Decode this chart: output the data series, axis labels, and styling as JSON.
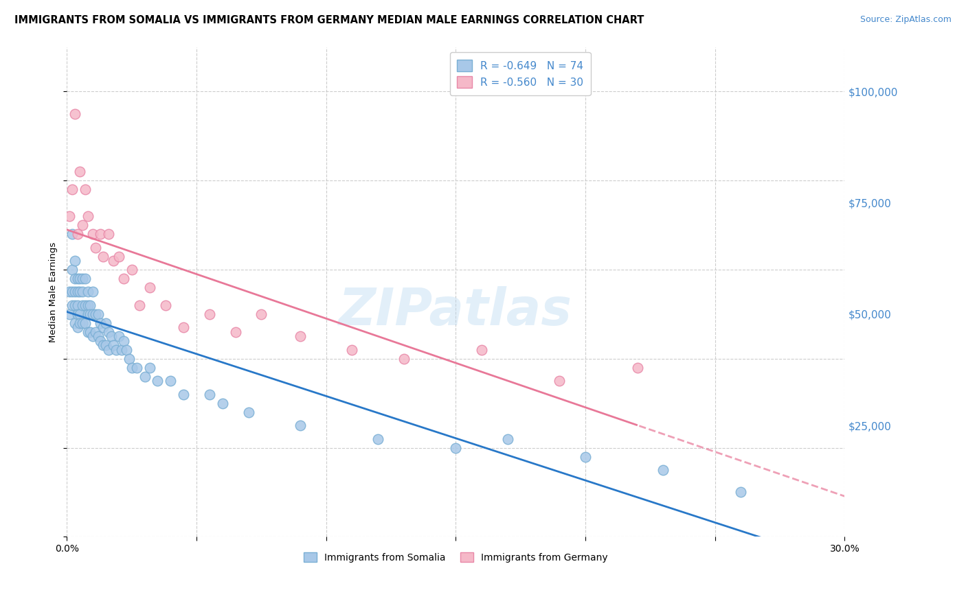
{
  "title": "IMMIGRANTS FROM SOMALIA VS IMMIGRANTS FROM GERMANY MEDIAN MALE EARNINGS CORRELATION CHART",
  "source": "Source: ZipAtlas.com",
  "ylabel_label": "Median Male Earnings",
  "x_min": 0.0,
  "x_max": 0.3,
  "y_min": 0,
  "y_max": 110000,
  "somalia_color": "#a8c8e8",
  "somalia_edge": "#7aafd4",
  "germany_color": "#f5b8c8",
  "germany_edge": "#e888a8",
  "somalia_line_color": "#2878c8",
  "germany_line_color": "#e87898",
  "R_somalia": -0.649,
  "N_somalia": 74,
  "R_germany": -0.56,
  "N_germany": 30,
  "watermark": "ZIPatlas",
  "tick_color": "#4488cc",
  "grid_color": "#cccccc",
  "title_fontsize": 10.5,
  "source_fontsize": 9,
  "legend_fontsize": 11,
  "somalia_x": [
    0.001,
    0.001,
    0.002,
    0.002,
    0.002,
    0.002,
    0.003,
    0.003,
    0.003,
    0.003,
    0.003,
    0.004,
    0.004,
    0.004,
    0.004,
    0.004,
    0.005,
    0.005,
    0.005,
    0.005,
    0.006,
    0.006,
    0.006,
    0.006,
    0.007,
    0.007,
    0.007,
    0.008,
    0.008,
    0.008,
    0.008,
    0.009,
    0.009,
    0.009,
    0.01,
    0.01,
    0.01,
    0.011,
    0.011,
    0.012,
    0.012,
    0.013,
    0.013,
    0.014,
    0.014,
    0.015,
    0.015,
    0.016,
    0.016,
    0.017,
    0.018,
    0.019,
    0.02,
    0.021,
    0.022,
    0.023,
    0.024,
    0.025,
    0.027,
    0.03,
    0.032,
    0.035,
    0.04,
    0.045,
    0.055,
    0.06,
    0.07,
    0.09,
    0.12,
    0.15,
    0.17,
    0.2,
    0.23,
    0.26
  ],
  "somalia_y": [
    55000,
    50000,
    68000,
    60000,
    55000,
    52000,
    62000,
    58000,
    55000,
    52000,
    48000,
    58000,
    55000,
    52000,
    50000,
    47000,
    58000,
    55000,
    50000,
    48000,
    58000,
    55000,
    52000,
    48000,
    58000,
    52000,
    48000,
    55000,
    52000,
    50000,
    46000,
    52000,
    50000,
    46000,
    55000,
    50000,
    45000,
    50000,
    46000,
    50000,
    45000,
    48000,
    44000,
    47000,
    43000,
    48000,
    43000,
    46000,
    42000,
    45000,
    43000,
    42000,
    45000,
    42000,
    44000,
    42000,
    40000,
    38000,
    38000,
    36000,
    38000,
    35000,
    35000,
    32000,
    32000,
    30000,
    28000,
    25000,
    22000,
    20000,
    22000,
    18000,
    15000,
    10000
  ],
  "germany_x": [
    0.001,
    0.002,
    0.003,
    0.004,
    0.005,
    0.006,
    0.007,
    0.008,
    0.01,
    0.011,
    0.013,
    0.014,
    0.016,
    0.018,
    0.02,
    0.022,
    0.025,
    0.028,
    0.032,
    0.038,
    0.045,
    0.055,
    0.065,
    0.075,
    0.09,
    0.11,
    0.13,
    0.16,
    0.19,
    0.22
  ],
  "germany_y": [
    72000,
    78000,
    95000,
    68000,
    82000,
    70000,
    78000,
    72000,
    68000,
    65000,
    68000,
    63000,
    68000,
    62000,
    63000,
    58000,
    60000,
    52000,
    56000,
    52000,
    47000,
    50000,
    46000,
    50000,
    45000,
    42000,
    40000,
    42000,
    35000,
    38000
  ]
}
